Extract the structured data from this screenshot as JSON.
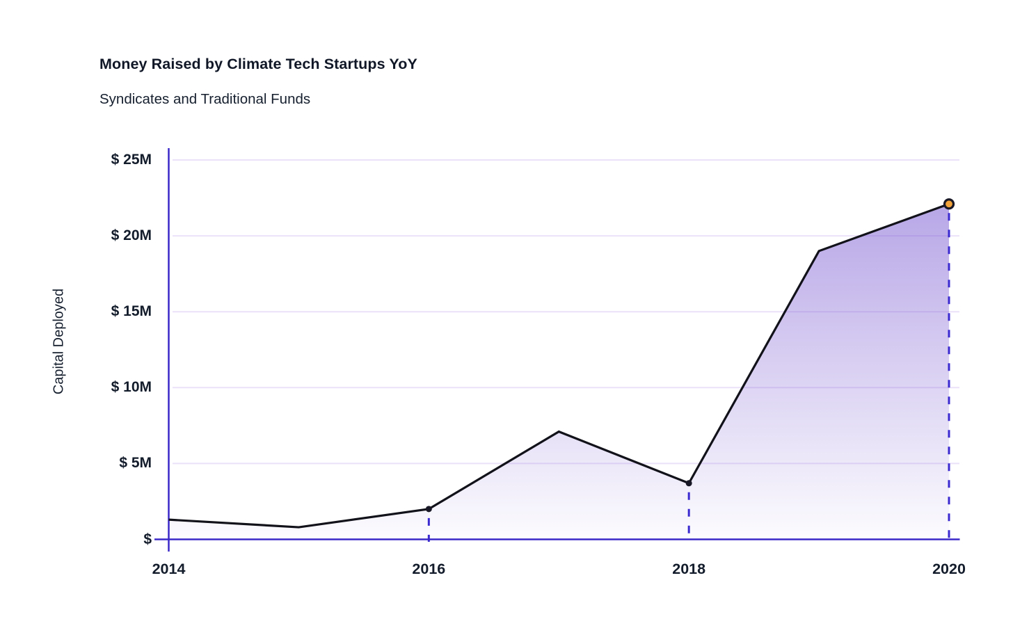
{
  "chart_data": {
    "type": "area",
    "title": "Money Raised by Climate Tech Startups YoY",
    "subtitle": "Syndicates and Traditional Funds",
    "xlabel": "",
    "ylabel": "Capital Deployed",
    "units": "$M",
    "x": [
      2014,
      2015,
      2016,
      2017,
      2018,
      2019,
      2020
    ],
    "values": [
      1.3,
      0.8,
      2.0,
      7.1,
      3.7,
      19.0,
      22.1
    ],
    "ylim": [
      0,
      25
    ],
    "grid": true,
    "legend": "none",
    "yticks": [
      {
        "value": 25,
        "label": "$ 25M"
      },
      {
        "value": 20,
        "label": "$ 20M"
      },
      {
        "value": 15,
        "label": "$ 15M"
      },
      {
        "value": 10,
        "label": "$ 10M"
      },
      {
        "value": 5,
        "label": "$ 5M"
      },
      {
        "value": 0,
        "label": "$"
      }
    ],
    "xticks": [
      {
        "value": 2014,
        "label": "2014"
      },
      {
        "value": 2016,
        "label": "2016"
      },
      {
        "value": 2018,
        "label": "2018"
      },
      {
        "value": 2020,
        "label": "2020"
      }
    ],
    "annotations": {
      "dot_marker_years": [
        2016,
        2018
      ],
      "highlight_marker_year": 2020,
      "dashed_dropline_years": [
        2016,
        2018,
        2020
      ]
    },
    "colors": {
      "background": "#ffffff",
      "axis": "#3a28c9",
      "gridline": "#ebe2f9",
      "line": "#12121a",
      "dot_marker": "#181826",
      "highlight_marker_fill": "#f2a43b",
      "highlight_marker_stroke": "#181826",
      "dashed_dropline": "#3a2ad0",
      "area_gradient_top": "rgba(118,85,208,0.52)",
      "area_gradient_bottom": "rgba(118,85,208,0.02)",
      "text": "#131c2b"
    }
  }
}
